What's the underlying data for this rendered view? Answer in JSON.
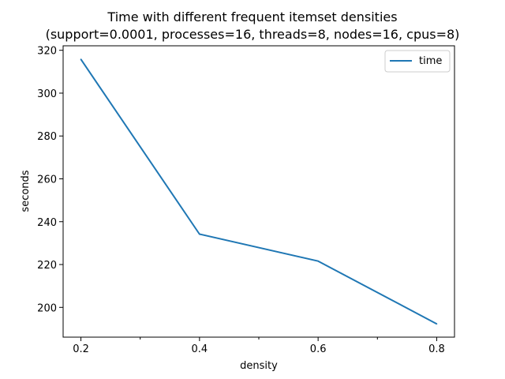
{
  "chart_data": {
    "type": "line",
    "title": "Time with different frequent itemset densities",
    "subtitle": "(support=0.0001, processes=16, threads=8, nodes=16, cpus=8)",
    "xlabel": "density",
    "ylabel": "seconds",
    "x": [
      0.2,
      0.4,
      0.6,
      0.8
    ],
    "series": [
      {
        "name": "time",
        "values": [
          315.8,
          234.2,
          221.6,
          192.3
        ],
        "color": "#1f77b4"
      }
    ],
    "xlim": [
      0.17,
      0.83
    ],
    "ylim": [
      186.1,
      322.1
    ],
    "x_major_ticks": [
      {
        "value": 0.2,
        "label": "0.2"
      },
      {
        "value": 0.4,
        "label": "0.4"
      },
      {
        "value": 0.6,
        "label": "0.6"
      },
      {
        "value": 0.8,
        "label": "0.8"
      }
    ],
    "x_minor_ticks": [
      0.3,
      0.5,
      0.7
    ],
    "y_ticks": [
      {
        "value": 200,
        "label": "200"
      },
      {
        "value": 220,
        "label": "220"
      },
      {
        "value": 240,
        "label": "240"
      },
      {
        "value": 260,
        "label": "260"
      },
      {
        "value": 280,
        "label": "280"
      },
      {
        "value": 300,
        "label": "300"
      },
      {
        "value": 320,
        "label": "320"
      }
    ],
    "grid": false,
    "legend_position": "top-right"
  }
}
